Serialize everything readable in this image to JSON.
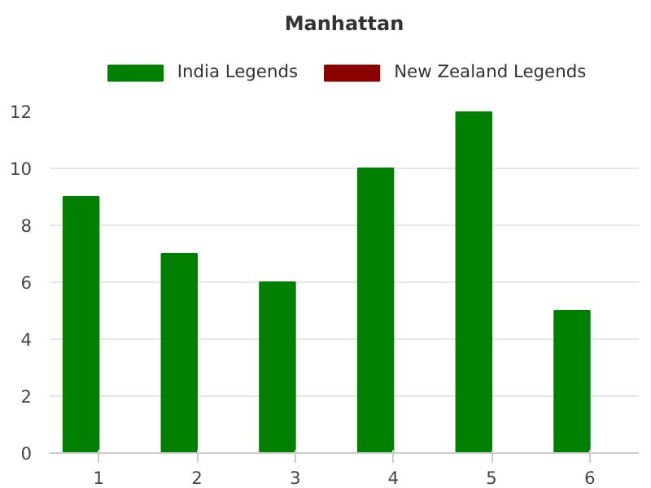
{
  "chart_data": {
    "type": "bar",
    "title": "Manhattan",
    "categories": [
      "1",
      "2",
      "3",
      "4",
      "5",
      "6"
    ],
    "series": [
      {
        "name": "India Legends",
        "color": "#008000",
        "values": [
          9,
          7,
          6,
          10,
          12,
          5
        ]
      },
      {
        "name": "New Zealand Legends",
        "color": "#8b0000",
        "values": [
          null,
          null,
          null,
          null,
          null,
          null
        ]
      }
    ],
    "ylim": [
      0,
      12
    ],
    "yticks": [
      0,
      2,
      4,
      6,
      8,
      10,
      12
    ],
    "grid": "y",
    "legend": "top"
  }
}
